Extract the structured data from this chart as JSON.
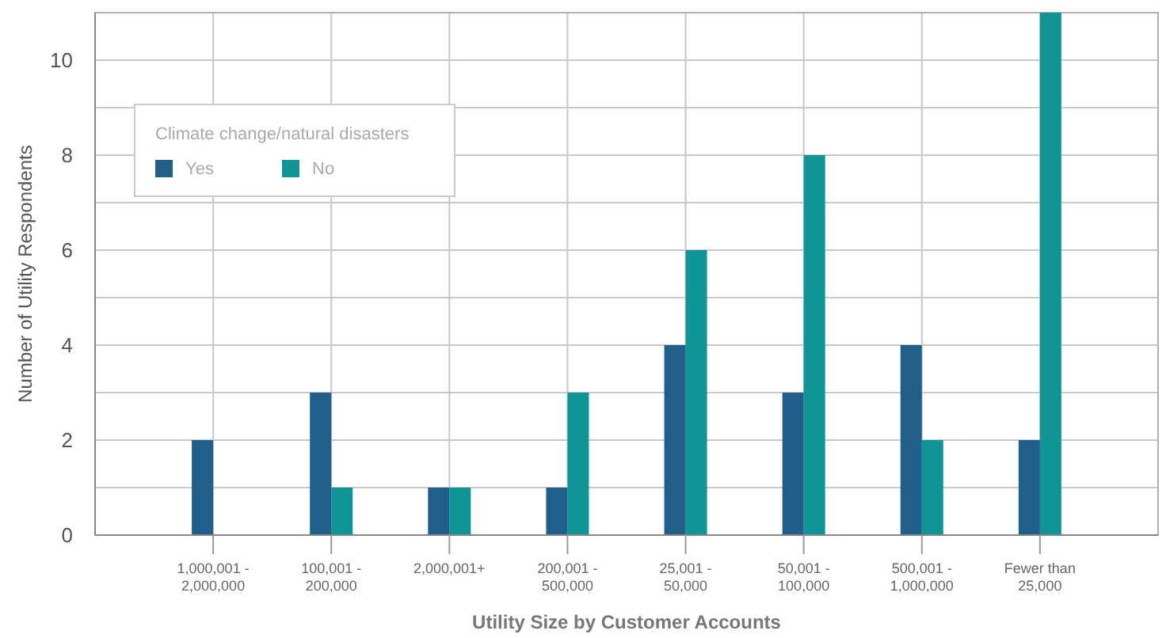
{
  "chart_data": {
    "type": "bar",
    "xlabel": "Utility Size by Customer Accounts",
    "ylabel": "Number of Utility Respondents",
    "legend_title": "Climate change/natural disasters",
    "categories": [
      "1,000,001 - 2,000,000",
      "100,001 - 200,000",
      "2,000,001+",
      "200,001 - 500,000",
      "25,001 - 50,000",
      "50,001 - 100,000",
      "500,001 - 1,000,000",
      "Fewer than 25,000"
    ],
    "series": [
      {
        "name": "Yes",
        "color": "#215f8b",
        "values": [
          2,
          3,
          1,
          1,
          4,
          3,
          4,
          2
        ]
      },
      {
        "name": "No",
        "color": "#0f9595",
        "values": [
          0,
          1,
          1,
          3,
          6,
          8,
          2,
          11
        ]
      }
    ],
    "ylim": [
      0,
      11
    ],
    "yticks": [
      0,
      {
        "value": 1,
        "label": null
      },
      2,
      {
        "value": 3,
        "label": null
      },
      4,
      {
        "value": 5,
        "label": null
      },
      6,
      {
        "value": 7,
        "label": null
      },
      8,
      {
        "value": 9,
        "label": null
      },
      10,
      {
        "value": 11,
        "label": null
      }
    ],
    "grid": true,
    "legend": "top left"
  }
}
